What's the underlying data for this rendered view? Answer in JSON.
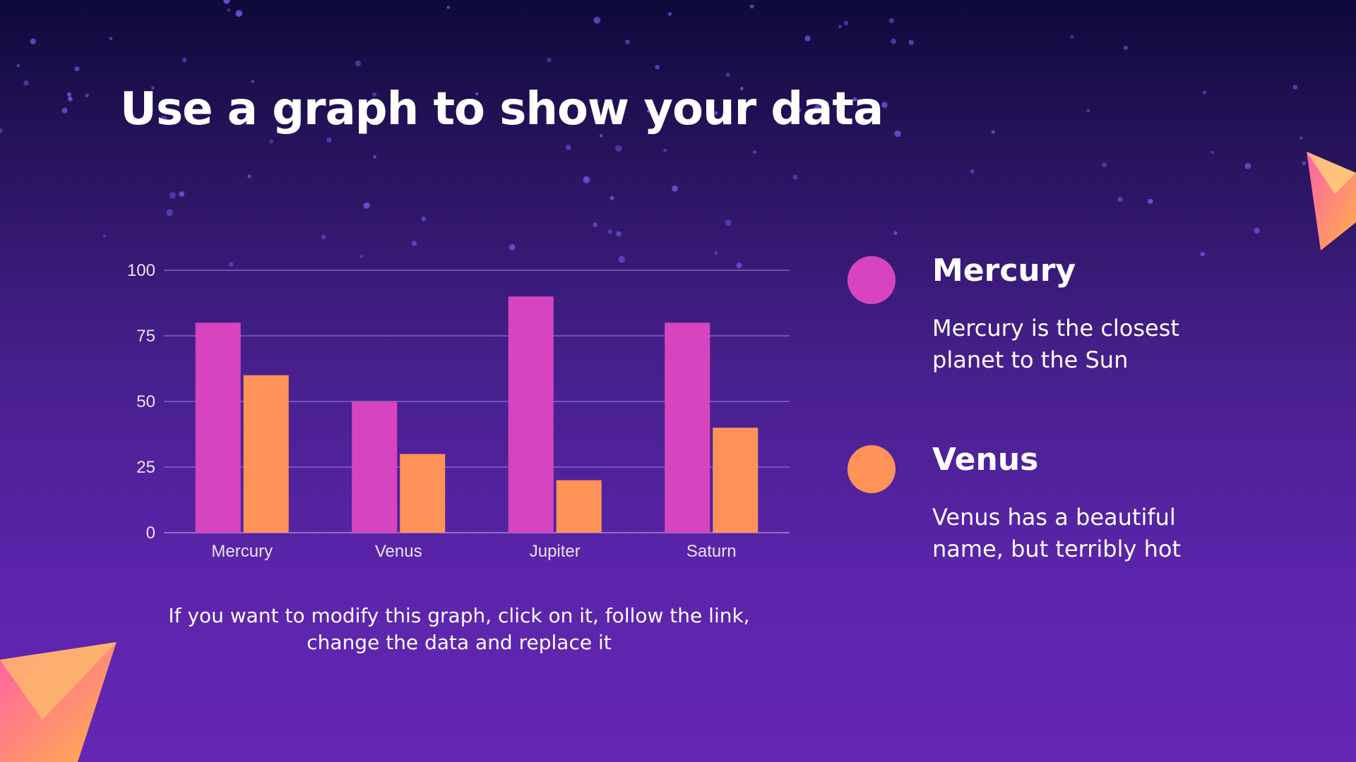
{
  "slide": {
    "title": "Use a graph to show your data",
    "caption": "If you want to modify this graph, click on it, follow the link, change the data and replace it"
  },
  "legend": [
    {
      "title": "Mercury",
      "description": "Mercury is the closest planet to the Sun",
      "color": "#d645bf"
    },
    {
      "title": "Venus",
      "description": "Venus has a beautiful name, but terribly hot",
      "color": "#ff9256"
    }
  ],
  "chart_data": {
    "type": "bar",
    "categories": [
      "Mercury",
      "Venus",
      "Jupiter",
      "Saturn"
    ],
    "series": [
      {
        "values": [
          80,
          50,
          90,
          80
        ],
        "color": "#d645bf"
      },
      {
        "values": [
          60,
          30,
          20,
          40
        ],
        "color": "#ff9256"
      }
    ],
    "yticks": [
      0,
      25,
      50,
      75,
      100
    ],
    "ylim": [
      0,
      100
    ],
    "grid": true,
    "legend_position": "right"
  }
}
